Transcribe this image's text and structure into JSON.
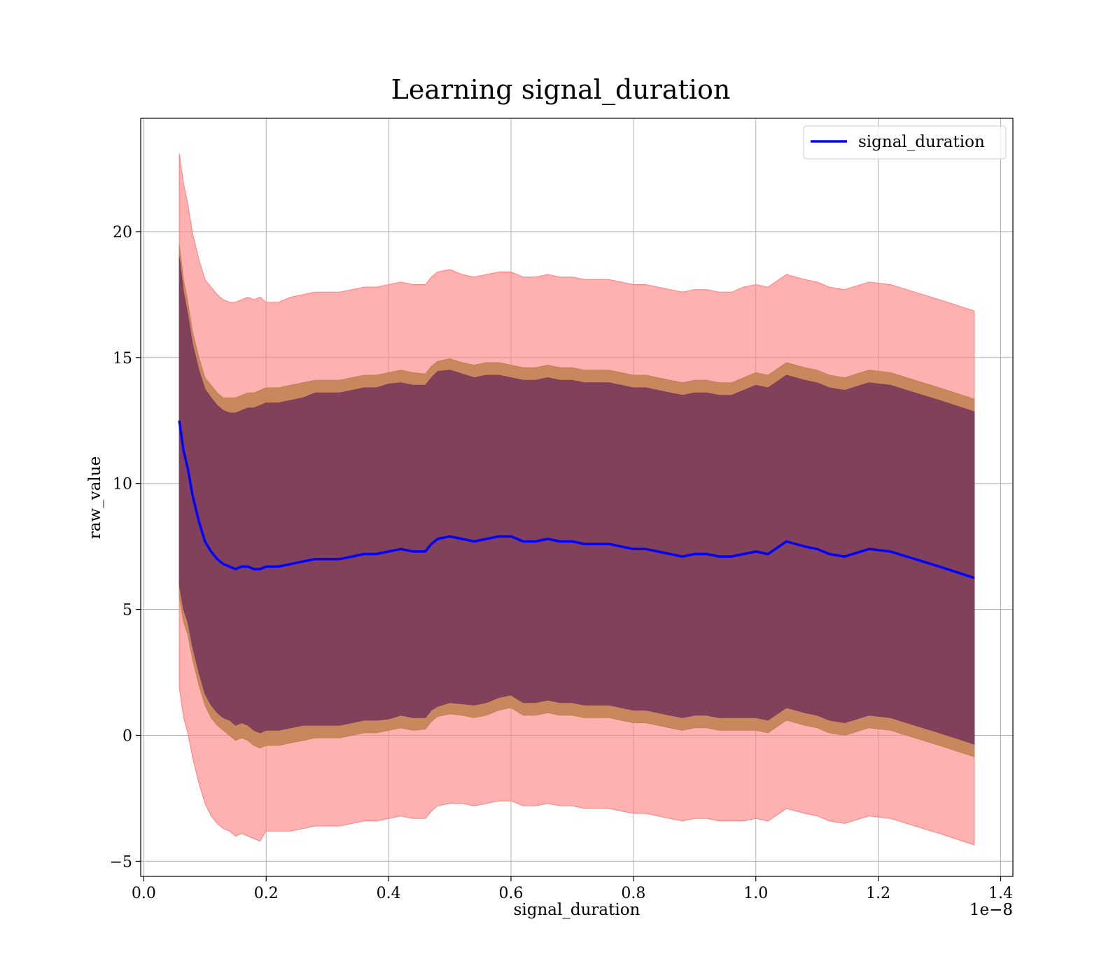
{
  "chart_data": {
    "type": "line",
    "title": "Learning signal_duration",
    "xlabel": "signal_duration",
    "ylabel": "raw_value",
    "x_offset_label": "1e−8",
    "xlim": [
      -0.005,
      1.42
    ],
    "ylim": [
      -5.6,
      24.5
    ],
    "x_ticks": [
      0.0,
      0.2,
      0.4,
      0.6,
      0.8,
      1.0,
      1.2,
      1.4
    ],
    "x_tick_labels": [
      "0.0",
      "0.2",
      "0.4",
      "0.6",
      "0.8",
      "1.0",
      "1.2",
      "1.4"
    ],
    "y_ticks": [
      -5,
      0,
      5,
      10,
      15,
      20
    ],
    "y_tick_labels": [
      "−5",
      "0",
      "5",
      "10",
      "15",
      "20"
    ],
    "grid": true,
    "legend": {
      "position": "top-right",
      "entries": [
        "signal_duration"
      ]
    },
    "colors": {
      "line": "#0000ff",
      "outer_band": "#ff8080",
      "middle_band": "#c08050",
      "inner_band": "#7a3a5a"
    },
    "series": [
      {
        "name": "signal_duration",
        "x": [
          0.058,
          0.065,
          0.072,
          0.08,
          0.09,
          0.1,
          0.11,
          0.12,
          0.13,
          0.14,
          0.15,
          0.16,
          0.17,
          0.18,
          0.19,
          0.2,
          0.22,
          0.24,
          0.26,
          0.28,
          0.3,
          0.32,
          0.34,
          0.36,
          0.38,
          0.4,
          0.42,
          0.44,
          0.46,
          0.47,
          0.48,
          0.5,
          0.52,
          0.54,
          0.56,
          0.58,
          0.6,
          0.62,
          0.64,
          0.66,
          0.68,
          0.7,
          0.72,
          0.74,
          0.76,
          0.78,
          0.8,
          0.82,
          0.84,
          0.86,
          0.88,
          0.9,
          0.92,
          0.94,
          0.96,
          0.98,
          1.0,
          1.02,
          1.05,
          1.08,
          1.1,
          1.12,
          1.145,
          1.185,
          1.22,
          1.26,
          1.3,
          1.357
        ],
        "mean": [
          12.5,
          11.3,
          10.6,
          9.5,
          8.5,
          7.7,
          7.3,
          7.0,
          6.8,
          6.7,
          6.6,
          6.7,
          6.7,
          6.6,
          6.6,
          6.7,
          6.7,
          6.8,
          6.9,
          7.0,
          7.0,
          7.0,
          7.1,
          7.2,
          7.2,
          7.3,
          7.4,
          7.3,
          7.3,
          7.6,
          7.8,
          7.9,
          7.8,
          7.7,
          7.8,
          7.9,
          7.9,
          7.7,
          7.7,
          7.8,
          7.7,
          7.7,
          7.6,
          7.6,
          7.6,
          7.5,
          7.4,
          7.4,
          7.3,
          7.2,
          7.1,
          7.2,
          7.2,
          7.1,
          7.1,
          7.2,
          7.3,
          7.2,
          7.7,
          7.5,
          7.4,
          7.2,
          7.1,
          7.4,
          7.3,
          7.0,
          6.7,
          6.25
        ],
        "inner_std": [
          6.5,
          6.3,
          6.1,
          6.0,
          6.0,
          6.05,
          6.1,
          6.1,
          6.1,
          6.1,
          6.2,
          6.2,
          6.3,
          6.4,
          6.5,
          6.5,
          6.5,
          6.5,
          6.5,
          6.6,
          6.6,
          6.6,
          6.6,
          6.6,
          6.6,
          6.65,
          6.6,
          6.6,
          6.6,
          6.6,
          6.65,
          6.6,
          6.55,
          6.5,
          6.5,
          6.4,
          6.3,
          6.4,
          6.4,
          6.4,
          6.4,
          6.4,
          6.4,
          6.4,
          6.4,
          6.4,
          6.4,
          6.4,
          6.4,
          6.4,
          6.4,
          6.4,
          6.4,
          6.4,
          6.4,
          6.5,
          6.6,
          6.6,
          6.6,
          6.6,
          6.6,
          6.6,
          6.6,
          6.6,
          6.6,
          6.6,
          6.6,
          6.6
        ],
        "middle_std": [
          7.0,
          6.8,
          6.6,
          6.5,
          6.5,
          6.5,
          6.6,
          6.6,
          6.6,
          6.7,
          6.8,
          6.8,
          6.9,
          7.0,
          7.1,
          7.1,
          7.1,
          7.1,
          7.1,
          7.1,
          7.1,
          7.1,
          7.1,
          7.1,
          7.1,
          7.1,
          7.1,
          7.1,
          7.05,
          7.05,
          7.05,
          7.05,
          7.0,
          7.0,
          7.0,
          6.9,
          6.8,
          6.9,
          6.9,
          6.9,
          6.9,
          6.9,
          6.9,
          6.9,
          6.9,
          6.9,
          6.9,
          6.9,
          6.9,
          6.9,
          6.9,
          6.9,
          6.9,
          6.9,
          6.9,
          7.0,
          7.1,
          7.1,
          7.1,
          7.1,
          7.1,
          7.1,
          7.1,
          7.1,
          7.1,
          7.1,
          7.1,
          7.1
        ],
        "outer_std": [
          10.6,
          10.6,
          10.5,
          10.4,
          10.4,
          10.4,
          10.5,
          10.5,
          10.5,
          10.5,
          10.6,
          10.6,
          10.7,
          10.7,
          10.8,
          10.5,
          10.5,
          10.6,
          10.6,
          10.6,
          10.6,
          10.6,
          10.6,
          10.6,
          10.6,
          10.6,
          10.6,
          10.6,
          10.6,
          10.6,
          10.6,
          10.6,
          10.5,
          10.5,
          10.5,
          10.5,
          10.5,
          10.5,
          10.5,
          10.5,
          10.5,
          10.5,
          10.5,
          10.5,
          10.5,
          10.5,
          10.5,
          10.5,
          10.5,
          10.5,
          10.5,
          10.5,
          10.5,
          10.5,
          10.5,
          10.6,
          10.6,
          10.6,
          10.6,
          10.6,
          10.6,
          10.6,
          10.6,
          10.6,
          10.6,
          10.6,
          10.6,
          10.6
        ]
      }
    ]
  }
}
